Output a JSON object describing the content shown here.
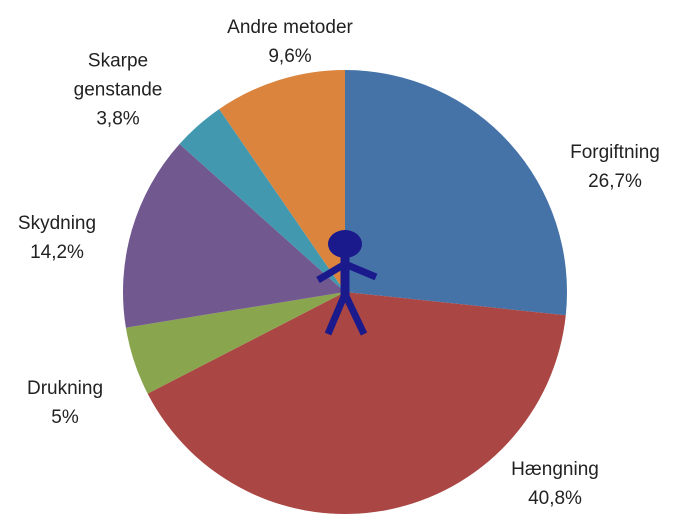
{
  "chart_data": {
    "type": "pie",
    "categories": [
      "Forgiftning",
      "Hængning",
      "Drukning",
      "Skydning",
      "Skarpe genstande",
      "Andre metoder"
    ],
    "values": [
      26.7,
      40.8,
      5,
      14.2,
      3.8,
      9.6
    ],
    "value_labels": [
      "26,7%",
      "40,8%",
      "5%",
      "14,2%",
      "3,8%",
      "9,6%"
    ],
    "colors": [
      "#4572a7",
      "#aa4643",
      "#89a54e",
      "#71588f",
      "#4198af",
      "#db843d"
    ]
  }
}
